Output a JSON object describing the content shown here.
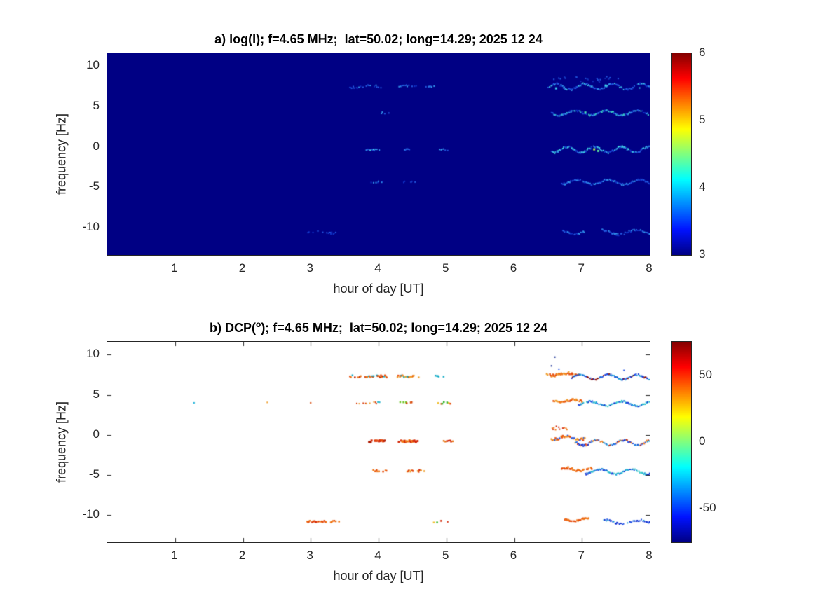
{
  "figure": {
    "background": "#ffffff",
    "text_color": "#262626",
    "title_color": "#000000"
  },
  "chart_data": [
    {
      "type": "heatmap",
      "panel": "a",
      "title_prefix": "a) log(I); f=4.65 MHz;  lat=50.02; long=14.29; 2025 12 24",
      "title_sup": "",
      "title_suffix": "",
      "xlabel": "hour of day [UT]",
      "ylabel": "frequency [Hz]",
      "xlim": [
        0,
        8
      ],
      "ylim": [
        -13.4,
        11.6
      ],
      "xticks": [
        1,
        2,
        3,
        4,
        5,
        6,
        7,
        8
      ],
      "yticks": [
        10,
        5,
        0,
        -5,
        -10
      ],
      "grid": false,
      "colormap": "jet",
      "colormap_stops": [
        [
          0,
          "#000084"
        ],
        [
          0.125,
          "#0012ff"
        ],
        [
          0.375,
          "#00ffff"
        ],
        [
          0.625,
          "#ffff00"
        ],
        [
          0.875,
          "#ff0000"
        ],
        [
          1,
          "#840000"
        ]
      ],
      "background_color": "#000084",
      "background_value": 3,
      "colorbar": {
        "min": 3,
        "max": 6,
        "ticks": [
          6,
          5,
          4,
          3
        ]
      },
      "traces": [
        {
          "y": 7.45,
          "segments": [
            {
              "x0": 3.58,
              "x1": 4.08,
              "density": 0.5,
              "amp": 0.12,
              "period": 0.5,
              "jitter": 0.15,
              "size": 2,
              "colors": [
                "#1034c8",
                "#2258e0",
                "#3398ee"
              ]
            },
            {
              "x0": 4.28,
              "x1": 4.58,
              "density": 0.45,
              "amp": 0.1,
              "period": 0.5,
              "jitter": 0.12,
              "size": 2,
              "colors": [
                "#1034c8",
                "#2258e0",
                "#3398ee"
              ]
            },
            {
              "x0": 4.7,
              "x1": 4.82,
              "density": 0.5,
              "amp": 0,
              "period": 0.5,
              "jitter": 0.1,
              "size": 2,
              "colors": [
                "#2258e0",
                "#3398ee"
              ]
            },
            {
              "x0": 6.5,
              "x1": 8.0,
              "density": 0.92,
              "amp": 0.35,
              "period": 0.42,
              "jitter": 0.12,
              "size": 2,
              "colors": [
                "#1034c8",
                "#2258e0",
                "#3398ee",
                "#40d0e0",
                "#2258e0"
              ]
            }
          ]
        },
        {
          "y": 8.35,
          "segments": [
            {
              "x0": 6.55,
              "x1": 7.6,
              "density": 0.18,
              "amp": 0.2,
              "period": 0.7,
              "jitter": 0.3,
              "size": 2,
              "colors": [
                "#1030b8",
                "#2258e0"
              ]
            }
          ]
        },
        {
          "y": 4.2,
          "segments": [
            {
              "x0": 4.02,
              "x1": 4.16,
              "density": 0.5,
              "amp": 0,
              "period": 0.5,
              "jitter": 0.1,
              "size": 2,
              "colors": [
                "#2258e0",
                "#3398ee"
              ]
            },
            {
              "x0": 6.55,
              "x1": 8.0,
              "density": 0.9,
              "amp": 0.3,
              "period": 0.46,
              "jitter": 0.1,
              "size": 2,
              "colors": [
                "#1034c8",
                "#2258e0",
                "#3398ee",
                "#38d0c8"
              ]
            }
          ]
        },
        {
          "y": -0.35,
          "segments": [
            {
              "x0": 3.82,
              "x1": 4.02,
              "density": 0.6,
              "amp": 0,
              "period": 0.5,
              "jitter": 0.12,
              "size": 2,
              "colors": [
                "#2258e0",
                "#3398ee",
                "#40d8e0"
              ]
            },
            {
              "x0": 4.3,
              "x1": 4.46,
              "density": 0.5,
              "amp": 0,
              "period": 0.5,
              "jitter": 0.1,
              "size": 2,
              "colors": [
                "#2258e0",
                "#3398ee"
              ]
            },
            {
              "x0": 4.9,
              "x1": 5.02,
              "density": 0.5,
              "amp": 0,
              "period": 0.5,
              "jitter": 0.1,
              "size": 2,
              "colors": [
                "#2258e0",
                "#3398ee"
              ]
            },
            {
              "x0": 6.55,
              "x1": 8.0,
              "density": 0.95,
              "amp": 0.35,
              "period": 0.4,
              "jitter": 0.12,
              "size": 2,
              "colors": [
                "#1034c8",
                "#2258e0",
                "#3398ee",
                "#40d8e0"
              ]
            }
          ]
        },
        {
          "y": -4.35,
          "segments": [
            {
              "x0": 3.88,
              "x1": 4.06,
              "density": 0.55,
              "amp": 0,
              "period": 0.5,
              "jitter": 0.1,
              "size": 2,
              "colors": [
                "#1034c8",
                "#2258e0",
                "#3398ee"
              ]
            },
            {
              "x0": 4.36,
              "x1": 4.56,
              "density": 0.5,
              "amp": 0,
              "period": 0.5,
              "jitter": 0.1,
              "size": 2,
              "colors": [
                "#1034c8",
                "#2258e0"
              ]
            },
            {
              "x0": 6.7,
              "x1": 8.0,
              "density": 0.88,
              "amp": 0.3,
              "period": 0.46,
              "jitter": 0.12,
              "size": 2,
              "colors": [
                "#1034c8",
                "#2258e0",
                "#3398ee"
              ]
            }
          ]
        },
        {
          "y": -10.6,
          "segments": [
            {
              "x0": 2.95,
              "x1": 3.38,
              "density": 0.45,
              "amp": 0.1,
              "period": 0.5,
              "jitter": 0.12,
              "size": 2,
              "colors": [
                "#1034c8",
                "#2258e0"
              ]
            },
            {
              "x0": 6.72,
              "x1": 7.05,
              "density": 0.8,
              "amp": 0.18,
              "period": 0.4,
              "jitter": 0.1,
              "size": 2,
              "colors": [
                "#1034c8",
                "#2258e0",
                "#3398ee"
              ]
            },
            {
              "x0": 7.3,
              "x1": 8.0,
              "density": 0.85,
              "amp": 0.28,
              "period": 0.5,
              "jitter": 0.12,
              "size": 2,
              "colors": [
                "#1034c8",
                "#2258e0",
                "#3398ee"
              ]
            }
          ]
        }
      ],
      "dots": [
        {
          "x": 7.18,
          "y": -0.3,
          "color": "#a8e84a",
          "size": 3
        },
        {
          "x": 7.24,
          "y": -0.5,
          "color": "#58e0a0",
          "size": 3
        },
        {
          "x": 7.05,
          "y": 4.25,
          "color": "#48e0b8",
          "size": 3
        },
        {
          "x": 7.35,
          "y": 7.6,
          "color": "#40d8e8",
          "size": 3
        },
        {
          "x": 6.62,
          "y": 7.25,
          "color": "#38c8e8",
          "size": 3
        },
        {
          "x": 7.85,
          "y": 7.3,
          "color": "#40d8e8",
          "size": 2
        }
      ]
    },
    {
      "type": "heatmap",
      "panel": "b",
      "title_prefix": "b) DCP(",
      "title_sup": "o",
      "title_suffix": "); f=4.65 MHz;  lat=50.02; long=14.29; 2025 12 24",
      "xlabel": "hour of day [UT]",
      "ylabel": "frequency [Hz]",
      "xlim": [
        0,
        8
      ],
      "ylim": [
        -13.4,
        11.6
      ],
      "xticks": [
        1,
        2,
        3,
        4,
        5,
        6,
        7,
        8
      ],
      "yticks": [
        10,
        5,
        0,
        -5,
        -10
      ],
      "grid": false,
      "colormap": "jet",
      "colormap_stops": [
        [
          0,
          "#000084"
        ],
        [
          0.125,
          "#0012ff"
        ],
        [
          0.375,
          "#00ffff"
        ],
        [
          0.625,
          "#ffff00"
        ],
        [
          0.875,
          "#ff0000"
        ],
        [
          1,
          "#840000"
        ]
      ],
      "background_color": "#ffffff",
      "colorbar": {
        "min": -75,
        "max": 75,
        "ticks": [
          50,
          0,
          -50
        ]
      },
      "traces": [
        {
          "y": 7.3,
          "segments": [
            {
              "x0": 3.58,
              "x1": 4.12,
              "density": 0.6,
              "amp": 0,
              "period": 0.5,
              "jitter": 0.15,
              "size": 2.5,
              "colors": [
                "#e64e0e",
                "#f07818",
                "#c02808",
                "#18aec8"
              ]
            },
            {
              "x0": 4.28,
              "x1": 4.62,
              "density": 0.55,
              "amp": 0,
              "period": 0.5,
              "jitter": 0.13,
              "size": 2.5,
              "colors": [
                "#e64e0e",
                "#f0a030",
                "#20b0b0"
              ]
            },
            {
              "x0": 4.84,
              "x1": 4.96,
              "density": 0.5,
              "amp": 0,
              "period": 0.5,
              "jitter": 0.1,
              "size": 2.5,
              "colors": [
                "#20b0c8",
                "#18aec8"
              ]
            },
            {
              "y": 7.55,
              "x0": 6.48,
              "x1": 6.95,
              "density": 0.8,
              "amp": 0.15,
              "period": 0.4,
              "jitter": 0.14,
              "size": 2.5,
              "colors": [
                "#f07818",
                "#e64e0e",
                "#f0a030"
              ]
            },
            {
              "y": 7.2,
              "x0": 6.85,
              "x1": 8.0,
              "density": 0.9,
              "amp": 0.3,
              "period": 0.42,
              "jitter": 0.1,
              "size": 2,
              "colors": [
                "#1030d0",
                "#2858e8",
                "#18a0d8",
                "#8a1008"
              ]
            }
          ]
        },
        {
          "y": 4.0,
          "segments": [
            {
              "x0": 3.68,
              "x1": 4.05,
              "density": 0.35,
              "amp": 0,
              "period": 0.5,
              "jitter": 0.14,
              "size": 2,
              "colors": [
                "#d83808",
                "#18b0c8",
                "#f0a030"
              ]
            },
            {
              "x0": 4.32,
              "x1": 4.56,
              "density": 0.5,
              "amp": 0,
              "period": 0.5,
              "jitter": 0.12,
              "size": 2.5,
              "colors": [
                "#38b830",
                "#70c828",
                "#d84808"
              ]
            },
            {
              "x0": 4.88,
              "x1": 5.06,
              "density": 0.45,
              "amp": 0,
              "period": 0.5,
              "jitter": 0.12,
              "size": 2.5,
              "colors": [
                "#38b830",
                "#e64e0e",
                "#f0c030"
              ]
            },
            {
              "y": 4.25,
              "x0": 6.58,
              "x1": 7.0,
              "density": 0.8,
              "amp": 0.15,
              "period": 0.4,
              "jitter": 0.13,
              "size": 2.5,
              "colors": [
                "#f07818",
                "#e64e0e",
                "#f0a030"
              ]
            },
            {
              "y": 3.9,
              "x0": 6.95,
              "x1": 8.0,
              "density": 0.85,
              "amp": 0.28,
              "period": 0.46,
              "jitter": 0.1,
              "size": 2,
              "colors": [
                "#18a0d8",
                "#2858e8",
                "#30c8c8",
                "#1030d0"
              ]
            }
          ]
        },
        {
          "y": -0.8,
          "segments": [
            {
              "x0": 3.85,
              "x1": 4.1,
              "density": 0.75,
              "amp": 0,
              "period": 0.5,
              "jitter": 0.12,
              "size": 3,
              "colors": [
                "#d42808",
                "#e64e0e",
                "#b02008"
              ]
            },
            {
              "x0": 4.3,
              "x1": 4.6,
              "density": 0.7,
              "amp": 0,
              "period": 0.5,
              "jitter": 0.12,
              "size": 3,
              "colors": [
                "#d42808",
                "#f07818"
              ]
            },
            {
              "x0": 4.95,
              "x1": 5.1,
              "density": 0.5,
              "amp": 0,
              "period": 0.5,
              "jitter": 0.1,
              "size": 2.5,
              "colors": [
                "#d42808",
                "#e87818"
              ]
            },
            {
              "y": -0.35,
              "x0": 6.55,
              "x1": 7.05,
              "density": 0.8,
              "amp": 0.2,
              "period": 0.4,
              "jitter": 0.16,
              "size": 2.5,
              "colors": [
                "#f07818",
                "#f0a030",
                "#e64e0e",
                "#2858e8"
              ]
            },
            {
              "y": -1.0,
              "x0": 6.9,
              "x1": 8.0,
              "density": 0.9,
              "amp": 0.35,
              "period": 0.4,
              "jitter": 0.12,
              "size": 2,
              "colors": [
                "#2858e8",
                "#d42808",
                "#18a0d8",
                "#f07818",
                "#1030d0"
              ]
            }
          ]
        },
        {
          "y": 0.9,
          "segments": [
            {
              "x0": 6.55,
              "x1": 6.8,
              "density": 0.35,
              "amp": 0,
              "period": 0.5,
              "jitter": 0.3,
              "size": 2,
              "colors": [
                "#f07818",
                "#2858e8",
                "#d42808"
              ]
            }
          ]
        },
        {
          "y": -4.5,
          "segments": [
            {
              "x0": 3.9,
              "x1": 4.12,
              "density": 0.6,
              "amp": 0,
              "period": 0.5,
              "jitter": 0.12,
              "size": 2.5,
              "colors": [
                "#e64e0e",
                "#f07818"
              ]
            },
            {
              "x0": 4.4,
              "x1": 4.68,
              "density": 0.6,
              "amp": 0,
              "period": 0.5,
              "jitter": 0.12,
              "size": 2.5,
              "colors": [
                "#e64e0e",
                "#d42808",
                "#f0a030"
              ]
            },
            {
              "y": -4.3,
              "x0": 6.7,
              "x1": 7.15,
              "density": 0.8,
              "amp": 0.18,
              "period": 0.42,
              "jitter": 0.13,
              "size": 2.5,
              "colors": [
                "#f07818",
                "#e64e0e"
              ]
            },
            {
              "y": -4.6,
              "x0": 7.05,
              "x1": 8.0,
              "density": 0.85,
              "amp": 0.3,
              "period": 0.46,
              "jitter": 0.1,
              "size": 2,
              "colors": [
                "#2858e8",
                "#18a0d8",
                "#1030d0",
                "#30c8c8"
              ]
            }
          ]
        },
        {
          "y": -10.8,
          "segments": [
            {
              "x0": 2.95,
              "x1": 3.42,
              "density": 0.65,
              "amp": 0,
              "period": 0.5,
              "jitter": 0.12,
              "size": 2.5,
              "colors": [
                "#e64e0e",
                "#d42808",
                "#f07818"
              ]
            },
            {
              "x0": 4.78,
              "x1": 5.02,
              "density": 0.3,
              "amp": 0,
              "period": 0.5,
              "jitter": 0.15,
              "size": 2.5,
              "colors": [
                "#38b830",
                "#d42808",
                "#f0c030"
              ]
            },
            {
              "y": -10.6,
              "x0": 6.75,
              "x1": 7.1,
              "density": 0.75,
              "amp": 0.15,
              "period": 0.4,
              "jitter": 0.12,
              "size": 2.5,
              "colors": [
                "#f07818",
                "#e64e0e"
              ]
            },
            {
              "y": -10.9,
              "x0": 7.3,
              "x1": 8.0,
              "density": 0.7,
              "amp": 0.25,
              "period": 0.5,
              "jitter": 0.12,
              "size": 2,
              "colors": [
                "#2858e8",
                "#18a0d8",
                "#1030d0"
              ]
            }
          ]
        }
      ],
      "dots": [
        {
          "x": 1.28,
          "y": 4.0,
          "color": "#18b0d8",
          "size": 2
        },
        {
          "x": 2.36,
          "y": 4.05,
          "color": "#f0a030",
          "size": 2
        },
        {
          "x": 3.0,
          "y": 4.0,
          "color": "#d84808",
          "size": 2
        },
        {
          "x": 6.55,
          "y": 8.6,
          "color": "#102890",
          "size": 2
        },
        {
          "x": 6.6,
          "y": 9.7,
          "color": "#102890",
          "size": 2
        },
        {
          "x": 6.66,
          "y": 8.2,
          "color": "#2858e8",
          "size": 2
        },
        {
          "x": 7.62,
          "y": 8.05,
          "color": "#2858e8",
          "size": 2
        },
        {
          "x": 5.02,
          "y": -10.85,
          "color": "#d42808",
          "size": 2
        }
      ]
    }
  ]
}
